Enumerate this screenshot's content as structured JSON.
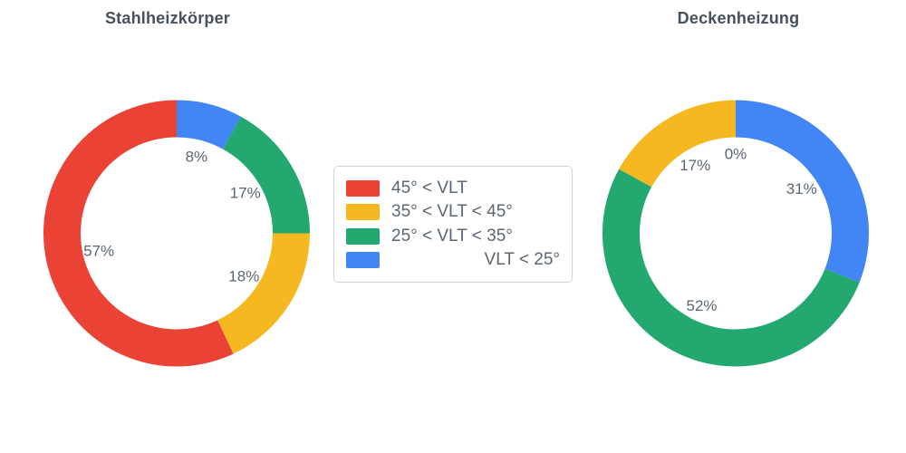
{
  "theme": {
    "background": "#ffffff",
    "title_color": "#46515e",
    "label_color": "#5b6673",
    "legend_border_color": "#d0d5da"
  },
  "legend": {
    "items": [
      {
        "label": "45° < VLT",
        "color": "#ea4336"
      },
      {
        "label": "35° < VLT < 45°",
        "color": "#f6b821"
      },
      {
        "label": "25° < VLT < 35°",
        "color": "#23a96f"
      },
      {
        "label": "VLT < 25°",
        "color": "#4285f4"
      }
    ]
  },
  "chart_data": [
    {
      "type": "pie",
      "title": "Stahlheizkörper",
      "hole": 0.72,
      "direction": "counterclockwise",
      "start_angle_deg": 0,
      "legend_position": "center-between-charts",
      "labels": [
        "45° < VLT",
        "35° < VLT < 45°",
        "25° < VLT < 35°",
        "VLT < 25°"
      ],
      "values": [
        57,
        18,
        17,
        8
      ],
      "value_labels": [
        "57%",
        "18%",
        "17%",
        "8%"
      ],
      "colors": [
        "#ea4336",
        "#f6b821",
        "#23a96f",
        "#4285f4"
      ]
    },
    {
      "type": "pie",
      "title": "Deckenheizung",
      "hole": 0.72,
      "direction": "counterclockwise",
      "start_angle_deg": 0,
      "legend_position": "center-between-charts",
      "labels": [
        "45° < VLT",
        "35° < VLT < 45°",
        "25° < VLT < 35°",
        "VLT < 25°"
      ],
      "values": [
        0,
        17,
        52,
        31
      ],
      "value_labels": [
        "0%",
        "17%",
        "52%",
        "31%"
      ],
      "colors": [
        "#ea4336",
        "#f6b821",
        "#23a96f",
        "#4285f4"
      ]
    }
  ]
}
